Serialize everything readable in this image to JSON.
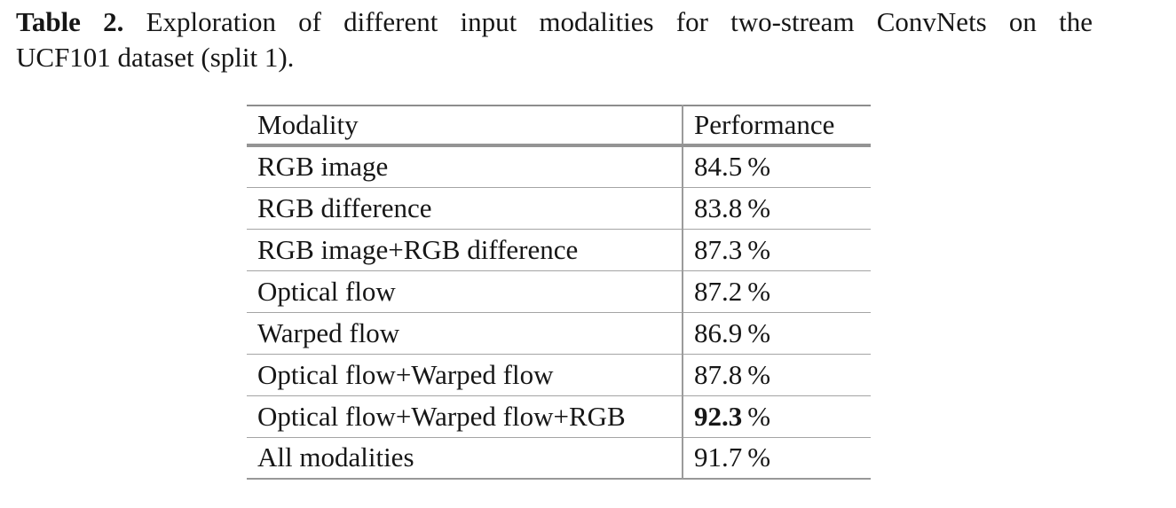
{
  "caption": {
    "label": "Table 2.",
    "line1_rest": "Exploration of different input modalities for two-stream ConvNets on the",
    "line2": "UCF101 dataset (split 1)."
  },
  "table": {
    "columns": [
      "Modality",
      "Performance"
    ],
    "unit": "%",
    "rows": [
      {
        "modality": "RGB image",
        "performance": "84.5",
        "bold": false
      },
      {
        "modality": "RGB difference",
        "performance": "83.8",
        "bold": false
      },
      {
        "modality": "RGB image+RGB difference",
        "performance": "87.3",
        "bold": false
      },
      {
        "modality": "Optical flow",
        "performance": "87.2",
        "bold": false
      },
      {
        "modality": "Warped flow",
        "performance": "86.9",
        "bold": false
      },
      {
        "modality": "Optical flow+Warped flow",
        "performance": "87.8",
        "bold": false
      },
      {
        "modality": "Optical flow+Warped flow+RGB",
        "performance": "92.3",
        "bold": true
      },
      {
        "modality": "All modalities",
        "performance": "91.7",
        "bold": false
      }
    ]
  }
}
